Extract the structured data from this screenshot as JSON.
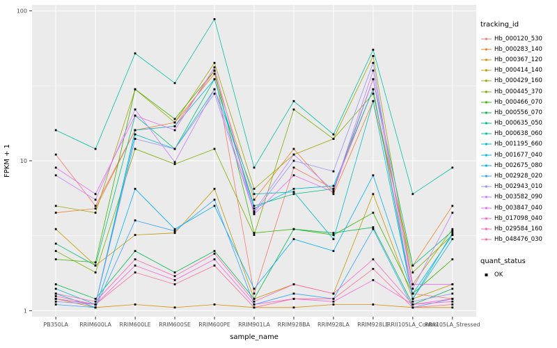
{
  "chart_data": {
    "type": "line",
    "title": "",
    "xlabel": "sample_name",
    "ylabel": "FPKM + 1",
    "y_scale": "log10",
    "y_ticks": [
      "1",
      "10",
      "100"
    ],
    "ylim": [
      0.91,
      110
    ],
    "grid": true,
    "legend_position": "right",
    "panel_background": "#EBEBEB",
    "categories": [
      "PB350LA",
      "RRIM600LA",
      "RRIM600LE",
      "RRIM600SE",
      "RRIM600PE",
      "RRIM901LA",
      "RRIM928BA",
      "RRIM928LA",
      "RRIM928LE",
      "RRII105LA_Control",
      "RRII105LA_Stressed"
    ],
    "series": [
      {
        "name": "Hb_000120_530",
        "color": "#F8766D",
        "values": [
          11,
          5,
          16,
          17,
          40,
          1.3,
          9,
          6.5,
          30,
          1.3,
          1.2
        ]
      },
      {
        "name": "Hb_000283_140",
        "color": "#EA8331",
        "values": [
          4.5,
          4.8,
          16,
          18,
          38,
          5.5,
          12,
          6,
          25,
          2,
          5
        ]
      },
      {
        "name": "Hb_000367_120",
        "color": "#D89000",
        "values": [
          1.2,
          1.05,
          1.1,
          1.05,
          1.1,
          1.05,
          1.05,
          1.1,
          1.1,
          1.05,
          1.05
        ]
      },
      {
        "name": "Hb_000414_140",
        "color": "#C09B00",
        "values": [
          3.5,
          2,
          3.2,
          3.3,
          6.5,
          1.2,
          1.5,
          1.3,
          6,
          1.2,
          1.5
        ]
      },
      {
        "name": "Hb_000429_160",
        "color": "#A3A500",
        "values": [
          5,
          4.5,
          30,
          18,
          45,
          6.5,
          11,
          14,
          50,
          1.5,
          3.5
        ]
      },
      {
        "name": "Hb_000445_370",
        "color": "#7CAE00",
        "values": [
          2.5,
          1.8,
          12,
          9.5,
          12,
          3.2,
          22,
          14,
          28,
          1.8,
          3.2
        ]
      },
      {
        "name": "Hb_000466_070",
        "color": "#39B600",
        "values": [
          2.2,
          2.1,
          30,
          19,
          40,
          3.3,
          3.5,
          3.2,
          4.5,
          1.3,
          2.2
        ]
      },
      {
        "name": "Hb_000556_070",
        "color": "#00BB4E",
        "values": [
          1.5,
          1.2,
          2.5,
          1.8,
          2.5,
          1.2,
          3.5,
          3.3,
          3.6,
          1.1,
          1.4
        ]
      },
      {
        "name": "Hb_000635_050",
        "color": "#00BF7D",
        "values": [
          2.8,
          2,
          20,
          12,
          35,
          5,
          6,
          6.5,
          35,
          2,
          3.4
        ]
      },
      {
        "name": "Hb_000638_060",
        "color": "#00C1A3",
        "values": [
          16,
          12,
          52,
          33,
          88,
          9,
          25,
          15,
          55,
          6,
          9
        ]
      },
      {
        "name": "Hb_001195_660",
        "color": "#00BFC4",
        "values": [
          1.4,
          1.1,
          15,
          12,
          30,
          6,
          6.2,
          3,
          25,
          1.2,
          3.3
        ]
      },
      {
        "name": "Hb_001677_040",
        "color": "#00BAE0",
        "values": [
          1.2,
          1.1,
          16,
          17,
          35,
          4.8,
          6.5,
          6.8,
          30,
          1.2,
          3
        ]
      },
      {
        "name": "Hb_002675_080",
        "color": "#00B0F6",
        "values": [
          1.3,
          1.05,
          6.5,
          3.5,
          5,
          1.4,
          3,
          2.5,
          8,
          1.3,
          3.2
        ]
      },
      {
        "name": "Hb_002928_020",
        "color": "#35A2FF",
        "values": [
          1.1,
          1.05,
          4,
          3.4,
          5.5,
          1.1,
          1.3,
          1.2,
          3.5,
          1.05,
          1.2
        ]
      },
      {
        "name": "Hb_002943_010",
        "color": "#9590FF",
        "values": [
          1.15,
          1.1,
          14,
          12,
          28,
          4.5,
          10,
          8.5,
          45,
          1.15,
          1.3
        ]
      },
      {
        "name": "Hb_003582_090",
        "color": "#C77CFF",
        "values": [
          8,
          5.5,
          22,
          9.8,
          30,
          4.6,
          11,
          6.3,
          40,
          1.4,
          4.5
        ]
      },
      {
        "name": "Hb_003847_040",
        "color": "#E76BF3",
        "values": [
          9,
          6,
          20,
          16,
          42,
          4.4,
          8,
          6.2,
          35,
          1.5,
          1.5
        ]
      },
      {
        "name": "Hb_017098_040",
        "color": "#FA62DB",
        "values": [
          1.2,
          1.1,
          2,
          1.6,
          2.2,
          1.1,
          1.2,
          1.15,
          1.6,
          1.1,
          1.15
        ]
      },
      {
        "name": "Hb_029584_160",
        "color": "#FF62BC",
        "values": [
          1.3,
          1.15,
          2.2,
          1.7,
          2.4,
          1.15,
          1.5,
          1.3,
          2.2,
          1.1,
          1.2
        ]
      },
      {
        "name": "Hb_048476_030",
        "color": "#FF6A98",
        "values": [
          1.25,
          1.1,
          1.8,
          1.5,
          2,
          1.05,
          1.2,
          1.2,
          1.9,
          1.05,
          1.1
        ]
      }
    ]
  },
  "legend": {
    "tracking_title": "tracking_id",
    "quant_title": "quant_status",
    "quant_items": [
      {
        "label": "OK"
      }
    ]
  },
  "theme": {
    "panel_bg": "#EBEBEB",
    "grid": "#FFFFFF",
    "tick_color": "#333333",
    "tick_label": "#4D4D4D",
    "point_color": "#000000"
  }
}
